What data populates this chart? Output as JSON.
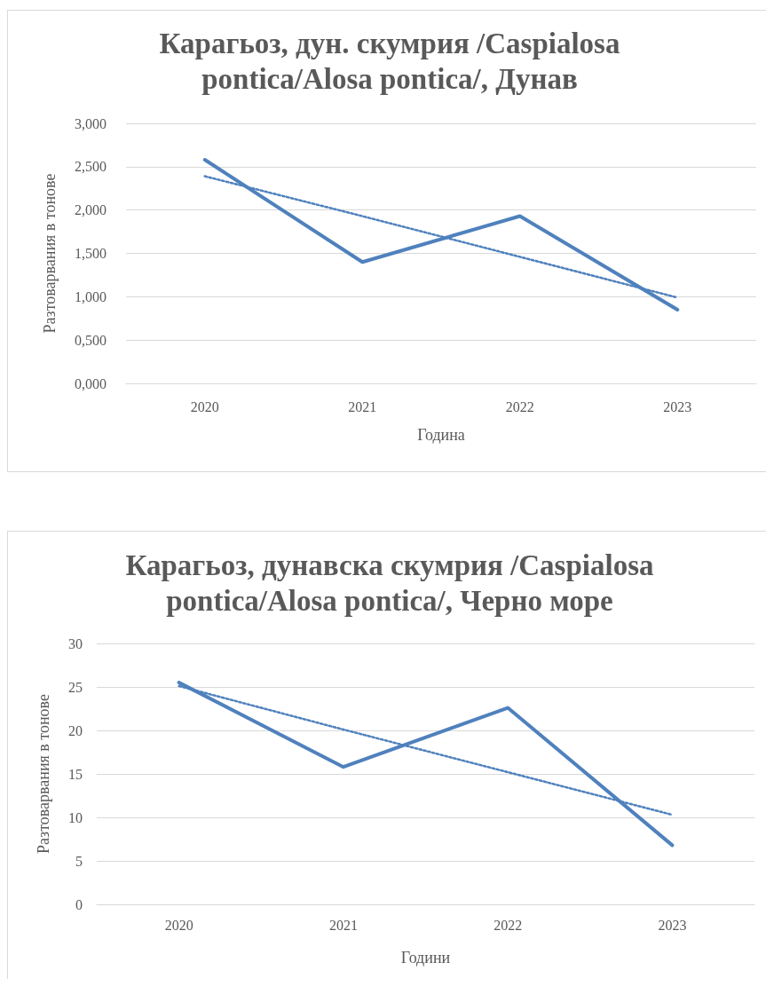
{
  "chart_data": [
    {
      "type": "line",
      "title": "Карагьоз, дун. скумрия /Caspialosa pontica/Alosa pontica/, Дунав",
      "xlabel": "Година",
      "ylabel": "Разтоварвания в тонове",
      "categories": [
        "2020",
        "2021",
        "2022",
        "2023"
      ],
      "series": [
        {
          "color": "#4f81bd",
          "values": [
            2.58,
            1.4,
            1.93,
            0.85
          ],
          "line_style": "solid"
        },
        {
          "color": "#4f81bd",
          "values": [
            2.39,
            1.93,
            1.46,
            0.99
          ],
          "line_style": "dotted"
        }
      ],
      "ylim": [
        0,
        3
      ],
      "yticks": [
        {
          "value": 0,
          "label": "0,000"
        },
        {
          "value": 0.5,
          "label": "0,500"
        },
        {
          "value": 1,
          "label": "1,000"
        },
        {
          "value": 1.5,
          "label": "1,500"
        },
        {
          "value": 2,
          "label": "2,000"
        },
        {
          "value": 2.5,
          "label": "2,500"
        },
        {
          "value": 3,
          "label": "3,000"
        }
      ],
      "grid": "y",
      "marker": "none"
    },
    {
      "type": "line",
      "title": "Карагьоз, дунавска скумрия /Caspialosa pontica/Alosa pontica/, Черно море",
      "xlabel": "Години",
      "ylabel": "Разтоварвания в тонове",
      "categories": [
        "2020",
        "2021",
        "2022",
        "2023"
      ],
      "series": [
        {
          "color": "#4f81bd",
          "values": [
            25.5,
            15.8,
            22.6,
            6.8
          ],
          "line_style": "solid"
        },
        {
          "color": "#4f81bd",
          "values": [
            25.1,
            20.1,
            15.2,
            10.3
          ],
          "line_style": "dotted"
        }
      ],
      "ylim": [
        0,
        30
      ],
      "yticks": [
        0,
        5,
        10,
        15,
        20,
        25,
        30
      ],
      "grid": "y",
      "marker": "none"
    }
  ]
}
